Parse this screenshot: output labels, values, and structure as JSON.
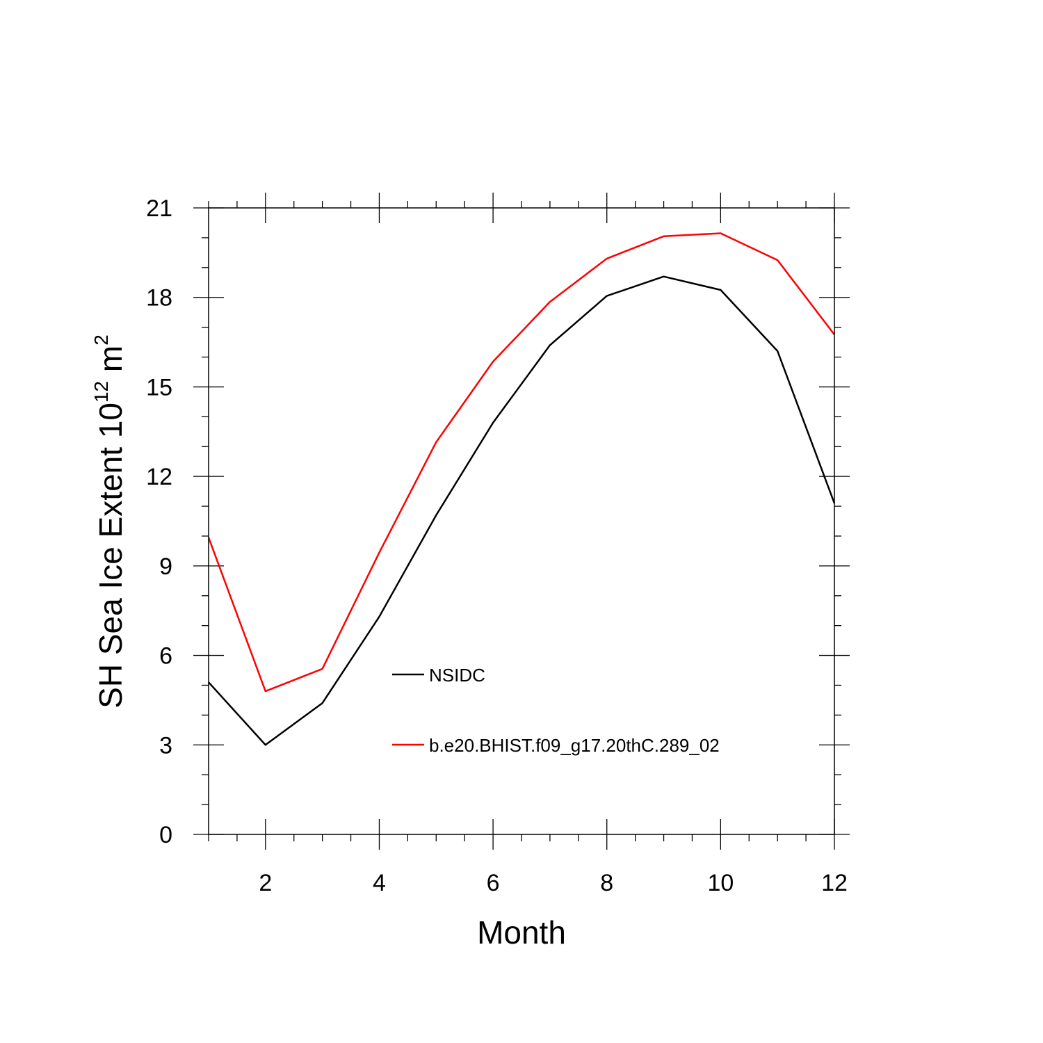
{
  "chart_data": {
    "type": "line",
    "title": "",
    "xlabel": "Month",
    "ylabel_main": "SH Sea Ice Extent 10",
    "ylabel_exp": "12",
    "ylabel_unit": " m",
    "ylabel_unit_exp": "2",
    "xlim": [
      1,
      12
    ],
    "ylim": [
      0,
      21
    ],
    "xticks": [
      2,
      4,
      6,
      8,
      10,
      12
    ],
    "yticks": [
      0,
      3,
      6,
      9,
      12,
      15,
      18,
      21
    ],
    "x": [
      1,
      2,
      3,
      4,
      5,
      6,
      7,
      8,
      9,
      10,
      11,
      12
    ],
    "series": [
      {
        "name": "NSIDC",
        "color": "#000000",
        "values": [
          5.1,
          3.0,
          4.4,
          7.3,
          10.7,
          13.8,
          16.4,
          18.05,
          18.7,
          18.25,
          16.2,
          11.1
        ]
      },
      {
        "name": "b.e20.BHIST.f09_g17.20thC.289_02",
        "color": "#ff0000",
        "values": [
          9.95,
          4.8,
          5.55,
          9.45,
          13.15,
          15.85,
          17.85,
          19.3,
          20.05,
          20.15,
          19.25,
          16.75
        ]
      }
    ],
    "legend": "center"
  }
}
